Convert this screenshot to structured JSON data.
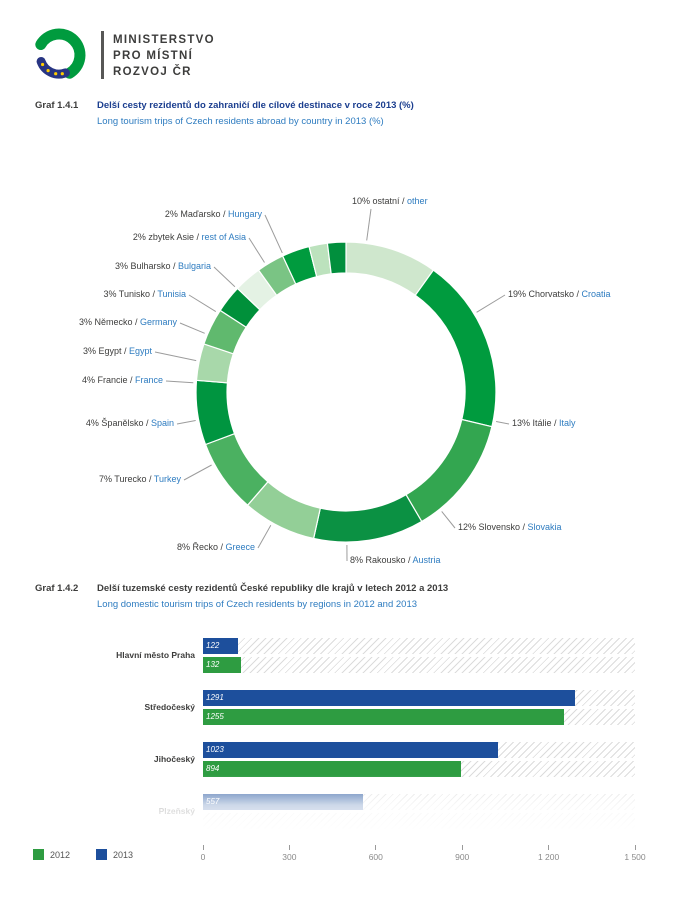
{
  "header": {
    "ministry_lines": [
      "MINISTERSTVO",
      "PRO MÍSTNÍ",
      "ROZVOJ ČR"
    ],
    "logo_colors": {
      "green": "#009b3e",
      "blue": "#283583",
      "yellow": "#ffcc00"
    }
  },
  "chart1": {
    "graf_label": "Graf 1.4.1",
    "title_cs": "Delší cesty rezidentů do zahraničí dle cílové destinace v roce 2013 (%)",
    "title_en": "Long tourism trips of Czech residents abroad by country in 2013 (%)"
  },
  "chart2": {
    "graf_label": "Graf 1.4.2",
    "title_cs": "Delší tuzemské cesty rezidentů České republiky dle krajů v letech 2012 a 2013",
    "title_en": "Long domestic tourism trips of Czech residents by regions in 2012 and 2013"
  },
  "chart_data": [
    {
      "type": "pie",
      "subtype": "donut",
      "title": "Delší cesty rezidentů do zahraničí dle cílové destinace v roce 2013 (%)",
      "segments": [
        {
          "pct": "10%",
          "label_cs": "ostatní",
          "label_en": "other",
          "value": 10,
          "color": "#cfe7cd"
        },
        {
          "pct": "19%",
          "label_cs": "Chorvatsko",
          "label_en": "Croatia",
          "value": 19,
          "color": "#009b3e"
        },
        {
          "pct": "13%",
          "label_cs": "Itálie",
          "label_en": "Italy",
          "value": 13,
          "color": "#33a650"
        },
        {
          "pct": "12%",
          "label_cs": "Slovensko",
          "label_en": "Slovakia",
          "value": 12,
          "color": "#0b9143"
        },
        {
          "pct": "8%",
          "label_cs": "Rakousko",
          "label_en": "Austria",
          "value": 8,
          "color": "#93cf97"
        },
        {
          "pct": "8%",
          "label_cs": "Řecko",
          "label_en": "Greece",
          "value": 8,
          "color": "#4bb161"
        },
        {
          "pct": "7%",
          "label_cs": "Turecko",
          "label_en": "Turkey",
          "value": 7,
          "color": "#009540"
        },
        {
          "pct": "4%",
          "label_cs": "Španělsko",
          "label_en": "Spain",
          "value": 4,
          "color": "#a8d8aa"
        },
        {
          "pct": "4%",
          "label_cs": "Francie",
          "label_en": "France",
          "value": 4,
          "color": "#60b96e"
        },
        {
          "pct": "3%",
          "label_cs": "Egypt",
          "label_en": "Egypt",
          "value": 3,
          "color": "#00903a"
        },
        {
          "pct": "3%",
          "label_cs": "Německo",
          "label_en": "Germany",
          "value": 3,
          "color": "#e4f2e4"
        },
        {
          "pct": "3%",
          "label_cs": "Tunisko",
          "label_en": "Tunisia",
          "value": 3,
          "color": "#7ac484"
        },
        {
          "pct": "3%",
          "label_cs": "Bulharsko",
          "label_en": "Bulgaria",
          "value": 3,
          "color": "#009b3e"
        },
        {
          "pct": "2%",
          "label_cs": "zbytek Asie",
          "label_en": "rest of Asia",
          "value": 2,
          "color": "#bce2bd"
        },
        {
          "pct": "2%",
          "label_cs": "Maďarsko",
          "label_en": "Hungary",
          "value": 2,
          "color": "#018f3d"
        }
      ]
    },
    {
      "type": "bar",
      "orientation": "horizontal",
      "title": "Delší tuzemské cesty rezidentů České republiky dle krajů v letech 2012 a 2013",
      "categories": [
        "Hlavní město Praha",
        "Středočeský",
        "Jihočeský",
        "Plzeňský"
      ],
      "series": [
        {
          "name": "2013",
          "color": "#1d4f9c",
          "values": [
            122,
            1291,
            1023,
            557
          ]
        },
        {
          "name": "2012",
          "color": "#2e9c41",
          "values": [
            132,
            1255,
            894,
            null
          ]
        }
      ],
      "xlim": [
        0,
        1500
      ],
      "xticks": [
        {
          "label": "0",
          "value": 0
        },
        {
          "label": "300",
          "value": 300
        },
        {
          "label": "600",
          "value": 600
        },
        {
          "label": "900",
          "value": 900
        },
        {
          "label": "1 200",
          "value": 1200
        },
        {
          "label": "1 500",
          "value": 1500
        }
      ],
      "legend": [
        {
          "label": "2012",
          "color": "#2e9c41"
        },
        {
          "label": "2013",
          "color": "#1d4f9c"
        }
      ]
    }
  ]
}
